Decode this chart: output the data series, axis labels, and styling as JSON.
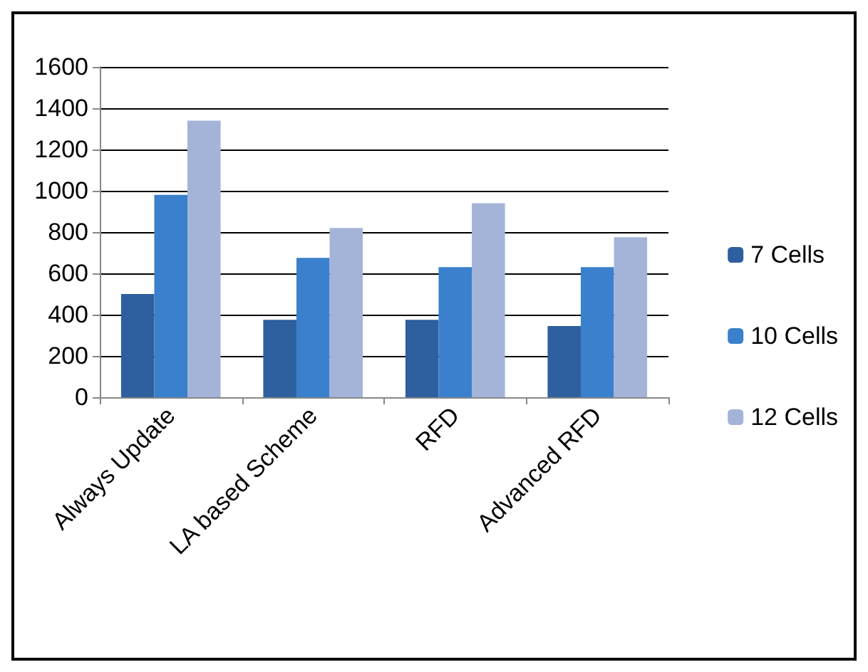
{
  "chart_data": {
    "type": "bar",
    "categories": [
      "Always Update",
      "LA based Scheme",
      "RFD",
      "Advanced RFD"
    ],
    "series": [
      {
        "name": "7 Cells",
        "color": "#2e5f9e",
        "values": [
          500,
          375,
          375,
          345
        ]
      },
      {
        "name": "10 Cells",
        "color": "#3a80cc",
        "values": [
          980,
          675,
          630,
          630
        ]
      },
      {
        "name": "12 Cells",
        "color": "#a3b4d8",
        "values": [
          1340,
          820,
          940,
          775
        ]
      }
    ],
    "ylim": [
      0,
      1600
    ],
    "yticks": [
      0,
      200,
      400,
      600,
      800,
      1000,
      1200,
      1400,
      1600
    ],
    "grid": "y",
    "legend": "right"
  }
}
